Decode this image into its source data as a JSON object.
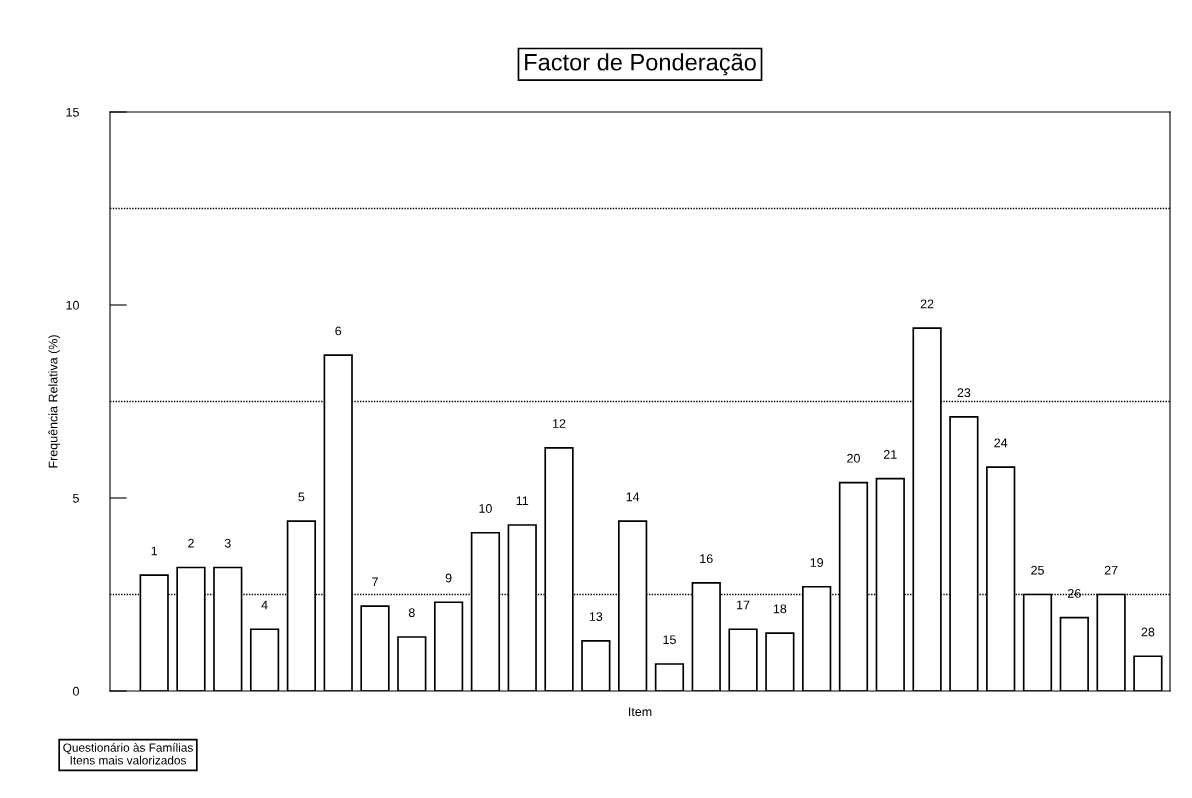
{
  "chart_data": {
    "type": "bar",
    "title": "Factor de Ponderação",
    "xlabel": "Item",
    "ylabel": "Frequência Relativa (%)",
    "categories": [
      "1",
      "2",
      "3",
      "4",
      "5",
      "6",
      "7",
      "8",
      "9",
      "10",
      "11",
      "12",
      "13",
      "14",
      "15",
      "16",
      "17",
      "18",
      "19",
      "20",
      "21",
      "22",
      "23",
      "24",
      "25",
      "26",
      "27",
      "28"
    ],
    "values": [
      3.0,
      3.2,
      3.2,
      1.6,
      4.4,
      8.7,
      2.2,
      1.4,
      2.3,
      4.1,
      4.3,
      6.3,
      1.3,
      4.4,
      0.7,
      2.8,
      1.6,
      1.5,
      2.7,
      5.4,
      5.5,
      9.4,
      7.1,
      5.8,
      2.5,
      1.9,
      2.5,
      0.9
    ],
    "color": "#ffffff",
    "ylim": [
      0,
      15
    ],
    "yticks": [
      0,
      5,
      10,
      15
    ],
    "grid": false,
    "ref_lines": [
      {
        "axis": "y",
        "value": 2.5,
        "line_style": "dotted"
      },
      {
        "axis": "y",
        "value": 7.5,
        "line_style": "dotted"
      },
      {
        "axis": "y",
        "value": 12.5,
        "line_style": "dotted"
      }
    ],
    "annotations": [
      "Questionário às Famílias\nItens mais valorizados"
    ]
  }
}
